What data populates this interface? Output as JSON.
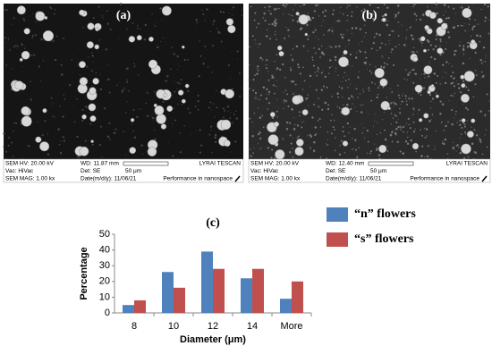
{
  "panels": [
    {
      "label": "(a)",
      "info": {
        "hv": "SEM HV: 20.00 kV",
        "wd": "WD: 11.87 mm",
        "brand": "LYRAI TESCAN",
        "vac": "Vac: HiVac",
        "det": "Det: SE",
        "scale": "50 μm",
        "mag": "SEM MAG: 1.00 kx",
        "date": "Date(m/d/y): 11/06/21",
        "tag": "Performance in nanospace"
      }
    },
    {
      "label": "(b)",
      "info": {
        "hv": "SEM HV: 20.00 kV",
        "wd": "WD: 12.40 mm",
        "brand": "LYRAI TESCAN",
        "vac": "Vac: HiVac",
        "det": "Det: SE",
        "scale": "50 μm",
        "mag": "SEM MAG: 1.00 kx",
        "date": "Date(m/d/y): 11/06/21",
        "tag": "Performance in nanospace"
      }
    }
  ],
  "chart_data": {
    "type": "bar",
    "title": "(c)",
    "x_label": "Diameter (μm)",
    "y_label": "Percentage",
    "categories": [
      "8",
      "10",
      "12",
      "14",
      "More"
    ],
    "series": [
      {
        "name": "“n” flowers",
        "color": "#4f81bd",
        "values": [
          5,
          26,
          39,
          22,
          9
        ]
      },
      {
        "name": "“s” flowers",
        "color": "#c0504d",
        "values": [
          8,
          16,
          28,
          28,
          20
        ]
      }
    ],
    "ylim": [
      0,
      50
    ],
    "yticks": [
      0,
      10,
      20,
      30,
      40,
      50
    ],
    "grid": false
  }
}
